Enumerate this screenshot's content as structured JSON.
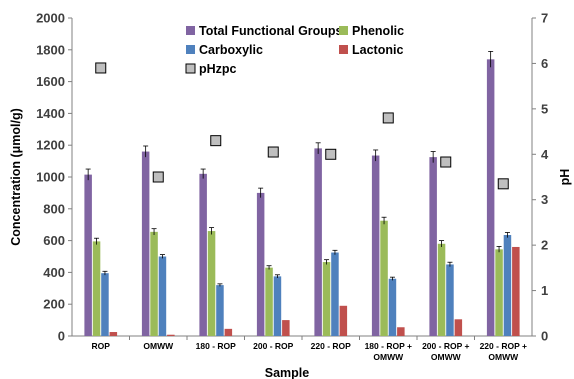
{
  "chart_data": {
    "type": "bar",
    "xlabel": "Sample",
    "ylabel": "Concentration (μmol/g)",
    "y2label": "pH",
    "ylim": [
      0,
      2000
    ],
    "y2lim": [
      0,
      7
    ],
    "yticks": [
      "0",
      "200",
      "400",
      "600",
      "800",
      "1000",
      "1200",
      "1400",
      "1600",
      "1800",
      "2000"
    ],
    "y2ticks": [
      "0",
      "1",
      "2",
      "3",
      "4",
      "5",
      "6",
      "7"
    ],
    "grid": false,
    "legend_position": "top",
    "categories": [
      [
        "ROP"
      ],
      [
        "OMWW"
      ],
      [
        "180 - ROP"
      ],
      [
        "200 - ROP"
      ],
      [
        "220 - ROP"
      ],
      [
        "180 - ROP +",
        "OMWW"
      ],
      [
        "200 - ROP +",
        "OMWW"
      ],
      [
        "220 - ROP +",
        "OMWW"
      ]
    ],
    "series": [
      {
        "name": "Total Functional Groups",
        "color": "#8064A2",
        "values": [
          1015,
          1160,
          1020,
          900,
          1180,
          1135,
          1125,
          1740
        ],
        "errors": [
          35,
          35,
          30,
          30,
          35,
          35,
          35,
          50
        ]
      },
      {
        "name": "Phenolic",
        "color": "#9BBB59",
        "values": [
          595,
          655,
          660,
          430,
          465,
          725,
          580,
          545
        ],
        "errors": [
          20,
          20,
          22,
          12,
          15,
          22,
          20,
          18
        ]
      },
      {
        "name": "Carboxylic",
        "color": "#4F81BD",
        "values": [
          395,
          500,
          320,
          375,
          525,
          360,
          450,
          635
        ],
        "errors": [
          12,
          12,
          8,
          10,
          14,
          10,
          14,
          16
        ]
      },
      {
        "name": "Lactonic",
        "color": "#C0504D",
        "values": [
          25,
          8,
          45,
          100,
          190,
          55,
          105,
          560
        ],
        "errors": [
          0,
          0,
          0,
          0,
          0,
          0,
          0,
          0
        ]
      }
    ],
    "secondary_series": {
      "name": "pHzpc",
      "type": "scatter",
      "axis": "right",
      "values": [
        5.9,
        3.5,
        4.3,
        4.05,
        4.0,
        4.8,
        3.83,
        3.35
      ],
      "errors": [
        0.08,
        0.06,
        0.08,
        0.06,
        0.06,
        0.08,
        0.06,
        0.05
      ]
    }
  }
}
